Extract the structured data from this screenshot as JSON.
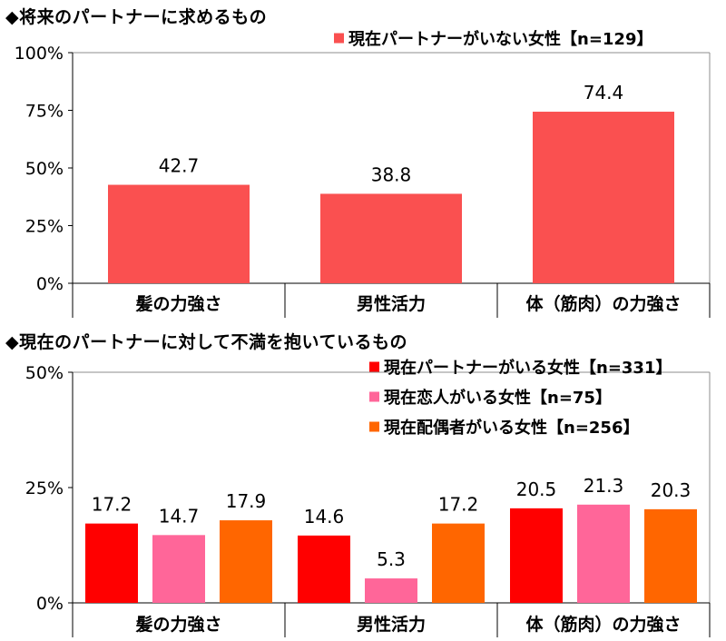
{
  "chart_data": [
    {
      "type": "bar",
      "title": "◆将来のパートナーに求めるもの",
      "categories": [
        "髪の力強さ",
        "男性活力",
        "体（筋肉）の力強さ"
      ],
      "series": [
        {
          "name": "現在パートナーがいない女性【n=129】",
          "values": [
            42.7,
            38.8,
            74.4
          ],
          "color": "#fa5050"
        }
      ],
      "ylim": [
        0,
        100
      ],
      "yticks": [
        0,
        25,
        50,
        75,
        100
      ],
      "ytick_labels": [
        "0%",
        "25%",
        "50%",
        "75%",
        "100%"
      ],
      "value_labels": [
        "42.7",
        "38.8",
        "74.4"
      ],
      "legend_position": "top-right"
    },
    {
      "type": "bar",
      "title": "◆現在のパートナーに対して不満を抱いているもの",
      "categories": [
        "髪の力強さ",
        "男性活力",
        "体（筋肉）の力強さ"
      ],
      "series": [
        {
          "name": "現在パートナーがいる女性【n=331】",
          "values": [
            17.2,
            14.6,
            20.5
          ],
          "color": "#ff0000"
        },
        {
          "name": "現在恋人がいる女性【n=75】",
          "values": [
            14.7,
            5.3,
            21.3
          ],
          "color": "#ff6699"
        },
        {
          "name": "現在配偶者がいる女性【n=256】",
          "values": [
            17.9,
            17.2,
            20.3
          ],
          "color": "#ff6600"
        }
      ],
      "ylim": [
        0,
        50
      ],
      "yticks": [
        0,
        25,
        50
      ],
      "ytick_labels": [
        "0%",
        "25%",
        "50%"
      ],
      "value_labels": [
        [
          "17.2",
          "14.6",
          "20.5"
        ],
        [
          "14.7",
          "5.3",
          "21.3"
        ],
        [
          "17.9",
          "17.2",
          "20.3"
        ]
      ],
      "legend_position": "top-right"
    }
  ]
}
